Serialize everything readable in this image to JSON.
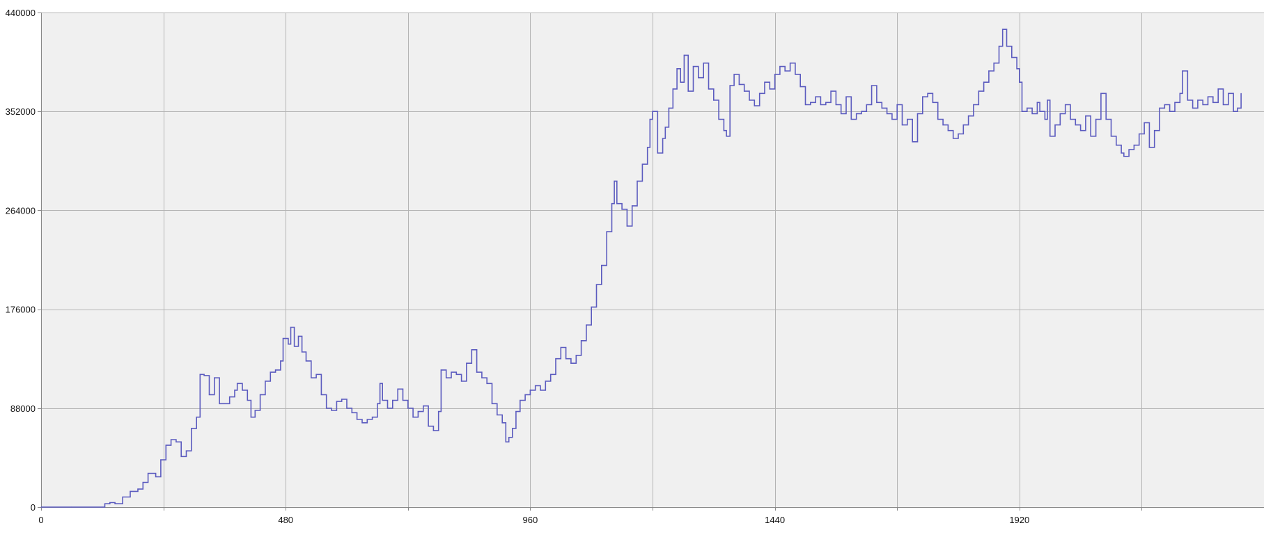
{
  "chart_data": {
    "type": "line",
    "title": "",
    "xlabel": "",
    "ylabel": "",
    "xlim": [
      0,
      2400
    ],
    "ylim": [
      0,
      440000
    ],
    "x_ticks": [
      0,
      480,
      960,
      1440,
      1920
    ],
    "x_tick_labels": [
      "0",
      "480",
      "960",
      "1440",
      "1920"
    ],
    "x_grid": [
      0,
      240,
      480,
      720,
      960,
      1200,
      1440,
      1680,
      1920,
      2160,
      2400
    ],
    "y_ticks": [
      0,
      88000,
      176000,
      264000,
      352000,
      440000
    ],
    "y_tick_labels": [
      "0",
      "88000",
      "176000",
      "264000",
      "352000",
      "440000"
    ],
    "grid": true,
    "legend": "none",
    "series": [
      {
        "color": "#5b5bbf",
        "points": [
          [
            0,
            0
          ],
          [
            60,
            0
          ],
          [
            120,
            0
          ],
          [
            125,
            3000
          ],
          [
            135,
            4000
          ],
          [
            145,
            3000
          ],
          [
            160,
            9000
          ],
          [
            175,
            14000
          ],
          [
            190,
            16000
          ],
          [
            200,
            22000
          ],
          [
            210,
            30000
          ],
          [
            225,
            27000
          ],
          [
            235,
            42000
          ],
          [
            245,
            55000
          ],
          [
            255,
            60000
          ],
          [
            265,
            58000
          ],
          [
            275,
            45000
          ],
          [
            285,
            50000
          ],
          [
            295,
            70000
          ],
          [
            305,
            80000
          ],
          [
            312,
            118000
          ],
          [
            320,
            117000
          ],
          [
            330,
            100000
          ],
          [
            340,
            115000
          ],
          [
            350,
            92000
          ],
          [
            360,
            92000
          ],
          [
            370,
            98000
          ],
          [
            380,
            104000
          ],
          [
            385,
            110000
          ],
          [
            395,
            104000
          ],
          [
            405,
            95000
          ],
          [
            412,
            80000
          ],
          [
            420,
            86000
          ],
          [
            430,
            100000
          ],
          [
            440,
            112000
          ],
          [
            450,
            120000
          ],
          [
            460,
            122000
          ],
          [
            470,
            130000
          ],
          [
            475,
            150000
          ],
          [
            485,
            145000
          ],
          [
            490,
            160000
          ],
          [
            497,
            143000
          ],
          [
            505,
            152000
          ],
          [
            512,
            138000
          ],
          [
            520,
            130000
          ],
          [
            530,
            115000
          ],
          [
            540,
            118000
          ],
          [
            550,
            100000
          ],
          [
            560,
            88000
          ],
          [
            570,
            86000
          ],
          [
            580,
            94000
          ],
          [
            590,
            96000
          ],
          [
            600,
            88000
          ],
          [
            610,
            84000
          ],
          [
            620,
            78000
          ],
          [
            630,
            75000
          ],
          [
            640,
            78000
          ],
          [
            650,
            80000
          ],
          [
            660,
            92000
          ],
          [
            665,
            110000
          ],
          [
            670,
            95000
          ],
          [
            680,
            88000
          ],
          [
            690,
            95000
          ],
          [
            700,
            105000
          ],
          [
            710,
            95000
          ],
          [
            720,
            88000
          ],
          [
            730,
            80000
          ],
          [
            740,
            85000
          ],
          [
            750,
            90000
          ],
          [
            760,
            72000
          ],
          [
            770,
            68000
          ],
          [
            780,
            85000
          ],
          [
            785,
            122000
          ],
          [
            795,
            115000
          ],
          [
            805,
            120000
          ],
          [
            815,
            118000
          ],
          [
            825,
            112000
          ],
          [
            835,
            128000
          ],
          [
            845,
            140000
          ],
          [
            855,
            120000
          ],
          [
            865,
            115000
          ],
          [
            875,
            110000
          ],
          [
            885,
            92000
          ],
          [
            895,
            82000
          ],
          [
            905,
            75000
          ],
          [
            912,
            58000
          ],
          [
            918,
            62000
          ],
          [
            925,
            70000
          ],
          [
            932,
            85000
          ],
          [
            940,
            95000
          ],
          [
            950,
            100000
          ],
          [
            960,
            104000
          ],
          [
            970,
            108000
          ],
          [
            980,
            104000
          ],
          [
            990,
            112000
          ],
          [
            1000,
            118000
          ],
          [
            1010,
            132000
          ],
          [
            1020,
            142000
          ],
          [
            1030,
            132000
          ],
          [
            1040,
            128000
          ],
          [
            1050,
            135000
          ],
          [
            1060,
            148000
          ],
          [
            1070,
            162000
          ],
          [
            1080,
            178000
          ],
          [
            1090,
            198000
          ],
          [
            1100,
            215000
          ],
          [
            1110,
            245000
          ],
          [
            1120,
            270000
          ],
          [
            1125,
            290000
          ],
          [
            1130,
            270000
          ],
          [
            1140,
            265000
          ],
          [
            1150,
            250000
          ],
          [
            1160,
            268000
          ],
          [
            1170,
            290000
          ],
          [
            1180,
            305000
          ],
          [
            1190,
            320000
          ],
          [
            1195,
            345000
          ],
          [
            1200,
            352000
          ],
          [
            1210,
            315000
          ],
          [
            1220,
            328000
          ],
          [
            1225,
            338000
          ],
          [
            1232,
            355000
          ],
          [
            1240,
            372000
          ],
          [
            1248,
            390000
          ],
          [
            1255,
            378000
          ],
          [
            1262,
            402000
          ],
          [
            1270,
            370000
          ],
          [
            1280,
            392000
          ],
          [
            1290,
            382000
          ],
          [
            1300,
            395000
          ],
          [
            1310,
            372000
          ],
          [
            1320,
            362000
          ],
          [
            1330,
            345000
          ],
          [
            1340,
            335000
          ],
          [
            1345,
            330000
          ],
          [
            1352,
            375000
          ],
          [
            1360,
            385000
          ],
          [
            1370,
            376000
          ],
          [
            1380,
            370000
          ],
          [
            1390,
            362000
          ],
          [
            1400,
            357000
          ],
          [
            1410,
            368000
          ],
          [
            1420,
            378000
          ],
          [
            1430,
            372000
          ],
          [
            1440,
            385000
          ],
          [
            1450,
            392000
          ],
          [
            1460,
            388000
          ],
          [
            1470,
            395000
          ],
          [
            1480,
            385000
          ],
          [
            1490,
            374000
          ],
          [
            1500,
            358000
          ],
          [
            1510,
            360000
          ],
          [
            1520,
            365000
          ],
          [
            1530,
            358000
          ],
          [
            1540,
            360000
          ],
          [
            1550,
            370000
          ],
          [
            1560,
            358000
          ],
          [
            1570,
            350000
          ],
          [
            1580,
            365000
          ],
          [
            1590,
            345000
          ],
          [
            1600,
            350000
          ],
          [
            1610,
            352000
          ],
          [
            1620,
            358000
          ],
          [
            1630,
            375000
          ],
          [
            1640,
            360000
          ],
          [
            1650,
            355000
          ],
          [
            1660,
            350000
          ],
          [
            1670,
            345000
          ],
          [
            1680,
            358000
          ],
          [
            1690,
            340000
          ],
          [
            1700,
            345000
          ],
          [
            1710,
            325000
          ],
          [
            1720,
            350000
          ],
          [
            1730,
            365000
          ],
          [
            1740,
            368000
          ],
          [
            1750,
            360000
          ],
          [
            1760,
            345000
          ],
          [
            1770,
            340000
          ],
          [
            1780,
            335000
          ],
          [
            1790,
            328000
          ],
          [
            1800,
            332000
          ],
          [
            1810,
            340000
          ],
          [
            1820,
            348000
          ],
          [
            1830,
            358000
          ],
          [
            1840,
            370000
          ],
          [
            1850,
            378000
          ],
          [
            1860,
            388000
          ],
          [
            1870,
            395000
          ],
          [
            1880,
            410000
          ],
          [
            1887,
            425000
          ],
          [
            1895,
            410000
          ],
          [
            1905,
            400000
          ],
          [
            1915,
            390000
          ],
          [
            1920,
            378000
          ],
          [
            1925,
            352000
          ],
          [
            1935,
            355000
          ],
          [
            1945,
            350000
          ],
          [
            1955,
            360000
          ],
          [
            1960,
            352000
          ],
          [
            1970,
            345000
          ],
          [
            1975,
            362000
          ],
          [
            1980,
            330000
          ],
          [
            1990,
            340000
          ],
          [
            2000,
            350000
          ],
          [
            2010,
            358000
          ],
          [
            2020,
            345000
          ],
          [
            2030,
            340000
          ],
          [
            2040,
            335000
          ],
          [
            2050,
            348000
          ],
          [
            2060,
            330000
          ],
          [
            2070,
            345000
          ],
          [
            2080,
            368000
          ],
          [
            2090,
            345000
          ],
          [
            2100,
            330000
          ],
          [
            2110,
            322000
          ],
          [
            2120,
            315000
          ],
          [
            2125,
            312000
          ],
          [
            2135,
            318000
          ],
          [
            2145,
            322000
          ],
          [
            2155,
            332000
          ],
          [
            2165,
            342000
          ],
          [
            2175,
            320000
          ],
          [
            2185,
            335000
          ],
          [
            2195,
            355000
          ],
          [
            2205,
            358000
          ],
          [
            2215,
            352000
          ],
          [
            2225,
            360000
          ],
          [
            2235,
            368000
          ],
          [
            2240,
            388000
          ],
          [
            2250,
            362000
          ],
          [
            2260,
            355000
          ],
          [
            2270,
            362000
          ],
          [
            2280,
            358000
          ],
          [
            2290,
            365000
          ],
          [
            2300,
            360000
          ],
          [
            2310,
            372000
          ],
          [
            2320,
            358000
          ],
          [
            2330,
            368000
          ],
          [
            2340,
            352000
          ],
          [
            2348,
            355000
          ],
          [
            2355,
            368000
          ]
        ]
      }
    ]
  }
}
